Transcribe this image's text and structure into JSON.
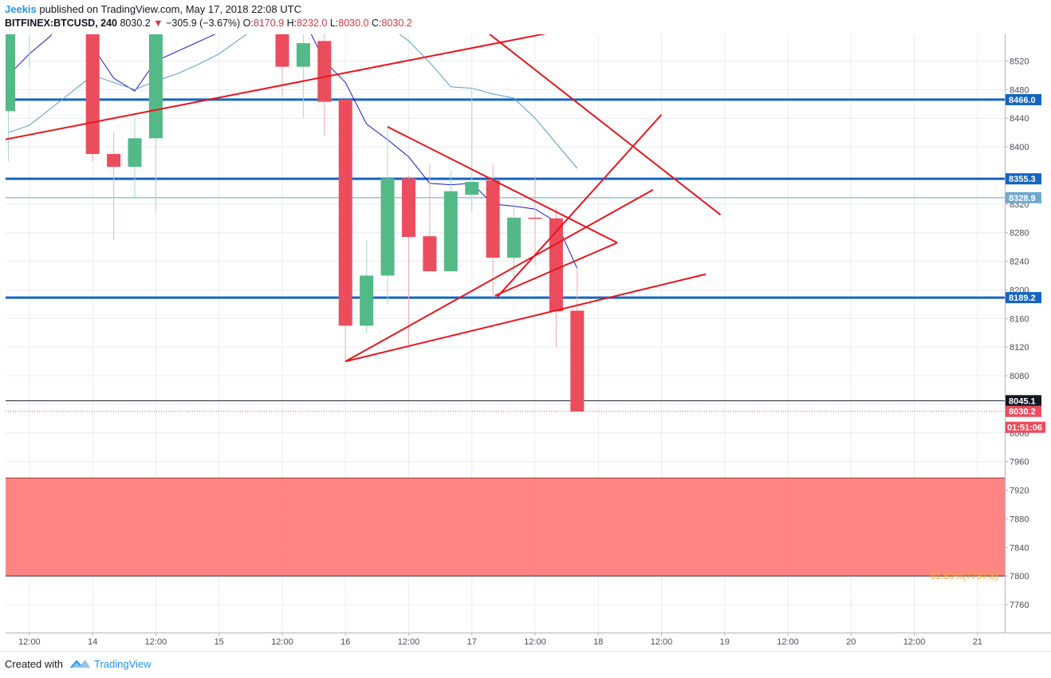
{
  "header": {
    "author": "Jeekis",
    "published": "published on TradingView.com, May 17, 2018 22:08 UTC",
    "symbol": "BITFINEX:BTCUSD, 240",
    "last": "8030.2",
    "change": "−305.9 (−3.67%)",
    "o_label": "O:",
    "o_value": "8170.9",
    "h_label": "H:",
    "h_value": "8232.0",
    "l_label": "L:",
    "l_value": "8030.0",
    "c_label": "C:",
    "c_value": "8030.2"
  },
  "footer": {
    "created_with": "Created with",
    "brand": "TradingView"
  },
  "colors": {
    "up": "#53b987",
    "down": "#eb4d5c",
    "hline": "#1565c0",
    "trend": "#e8141c",
    "ma_fast": "#1a1acc",
    "ma_slow": "#5a9bc7",
    "zone": "#ff7b7b",
    "fib": "#f0a830",
    "grid": "#e9ecf2",
    "axis_text": "#4a4e57"
  },
  "chart_data": {
    "type": "candlestick",
    "symbol": "BITFINEX:BTCUSD",
    "timeframe": "240",
    "ylim": [
      7720,
      8600
    ],
    "y_ticks": [
      7760,
      7800,
      7840,
      7880,
      7920,
      7960,
      8000,
      8040,
      8080,
      8120,
      8160,
      8200,
      8240,
      8280,
      8320,
      8400,
      8440,
      8480,
      8520
    ],
    "x_ticks": [
      {
        "t": 1,
        "label": "12:00"
      },
      {
        "t": 4,
        "label": "14"
      },
      {
        "t": 7,
        "label": "12:00"
      },
      {
        "t": 10,
        "label": "15"
      },
      {
        "t": 13,
        "label": "12:00"
      },
      {
        "t": 16,
        "label": "16"
      },
      {
        "t": 19,
        "label": "12:00"
      },
      {
        "t": 22,
        "label": "17"
      },
      {
        "t": 25,
        "label": "12:00"
      },
      {
        "t": 28,
        "label": "18"
      },
      {
        "t": 31,
        "label": "12:00"
      },
      {
        "t": 34,
        "label": "19"
      },
      {
        "t": 37,
        "label": "12:00"
      },
      {
        "t": 40,
        "label": "20"
      },
      {
        "t": 43,
        "label": "12:00"
      },
      {
        "t": 46,
        "label": "21"
      }
    ],
    "candles": [
      {
        "t": 0,
        "o": 8450,
        "h": 8600,
        "l": 8380,
        "c": 8560
      },
      {
        "t": 1,
        "o": 8590,
        "h": 8600,
        "l": 8510,
        "c": 8600
      },
      {
        "t": 4,
        "o": 8600,
        "h": 8600,
        "l": 8380,
        "c": 8390
      },
      {
        "t": 5,
        "o": 8390,
        "h": 8420,
        "l": 8270,
        "c": 8372
      },
      {
        "t": 6,
        "o": 8372,
        "h": 8440,
        "l": 8330,
        "c": 8412
      },
      {
        "t": 7,
        "o": 8412,
        "h": 8600,
        "l": 8310,
        "c": 8600
      },
      {
        "t": 13,
        "o": 8600,
        "h": 8600,
        "l": 8470,
        "c": 8512
      },
      {
        "t": 14,
        "o": 8512,
        "h": 8600,
        "l": 8440,
        "c": 8545
      },
      {
        "t": 15,
        "o": 8548,
        "h": 8600,
        "l": 8415,
        "c": 8463
      },
      {
        "t": 16,
        "o": 8466,
        "h": 8466,
        "l": 8100,
        "c": 8150
      },
      {
        "t": 17,
        "o": 8150,
        "h": 8270,
        "l": 8140,
        "c": 8220
      },
      {
        "t": 18,
        "o": 8220,
        "h": 8430,
        "l": 8180,
        "c": 8356
      },
      {
        "t": 19,
        "o": 8356,
        "h": 8360,
        "l": 8120,
        "c": 8274
      },
      {
        "t": 20,
        "o": 8275,
        "h": 8375,
        "l": 8230,
        "c": 8226
      },
      {
        "t": 21,
        "o": 8226,
        "h": 8367,
        "l": 8230,
        "c": 8338
      },
      {
        "t": 22,
        "o": 8333,
        "h": 8480,
        "l": 8310,
        "c": 8351
      },
      {
        "t": 23,
        "o": 8353,
        "h": 8375,
        "l": 8190,
        "c": 8245
      },
      {
        "t": 24,
        "o": 8245,
        "h": 8320,
        "l": 8210,
        "c": 8301
      },
      {
        "t": 25,
        "o": 8301,
        "h": 8360,
        "l": 8235,
        "c": 8300
      },
      {
        "t": 26,
        "o": 8300,
        "h": 8315,
        "l": 8120,
        "c": 8170
      },
      {
        "t": 27,
        "o": 8171,
        "h": 8232,
        "l": 8030,
        "c": 8030
      }
    ],
    "moving_averages": [
      {
        "color": "ma_fast",
        "points": [
          [
            0,
            8500
          ],
          [
            1,
            8530
          ],
          [
            2,
            8555
          ],
          [
            3,
            8600
          ],
          [
            4,
            8540
          ],
          [
            5,
            8496
          ],
          [
            6,
            8478
          ],
          [
            7,
            8520
          ],
          [
            13,
            8600
          ],
          [
            14,
            8580
          ],
          [
            15,
            8520
          ],
          [
            16,
            8490
          ],
          [
            17,
            8432
          ],
          [
            18,
            8410
          ],
          [
            19,
            8386
          ],
          [
            20,
            8349
          ],
          [
            21,
            8347
          ],
          [
            22,
            8349
          ],
          [
            23,
            8320
          ],
          [
            24,
            8317
          ],
          [
            25,
            8313
          ],
          [
            26,
            8295
          ],
          [
            27,
            8230
          ]
        ]
      },
      {
        "color": "ma_slow",
        "points": [
          [
            0,
            8420
          ],
          [
            1,
            8430
          ],
          [
            4,
            8500
          ],
          [
            6,
            8480
          ],
          [
            7,
            8492
          ],
          [
            8,
            8502
          ],
          [
            9,
            8515
          ],
          [
            10,
            8530
          ],
          [
            12,
            8572
          ],
          [
            13,
            8580
          ],
          [
            14,
            8598
          ],
          [
            16,
            8600
          ],
          [
            17,
            8590
          ],
          [
            18,
            8570
          ],
          [
            19,
            8548
          ],
          [
            20,
            8518
          ],
          [
            21,
            8484
          ],
          [
            22,
            8482
          ],
          [
            23,
            8474
          ],
          [
            24,
            8468
          ],
          [
            25,
            8440
          ],
          [
            26,
            8405
          ],
          [
            27,
            8370
          ]
        ]
      }
    ],
    "horizontal_lines": [
      {
        "price": 8466.0,
        "label": "8466.0",
        "style": "thick"
      },
      {
        "price": 8355.3,
        "label": "8355.3",
        "style": "thick"
      },
      {
        "price": 8328.9,
        "label": "8328.9",
        "style": "thin"
      },
      {
        "price": 8189.2,
        "label": "8189.2",
        "style": "thick"
      },
      {
        "price": 8045.1,
        "label": "8045.1",
        "style": "black"
      },
      {
        "price": 8030.2,
        "label": "8030.2",
        "style": "dotted"
      }
    ],
    "countdown": "01:51:06",
    "trendlines": [
      [
        [
          -0.2,
          8410
        ],
        [
          27,
          8567
        ]
      ],
      [
        [
          21,
          8600
        ],
        [
          33.8,
          8305
        ]
      ],
      [
        [
          16,
          8100
        ],
        [
          30.6,
          8340
        ]
      ],
      [
        [
          23.2,
          8190
        ],
        [
          31,
          8445
        ]
      ],
      [
        [
          18,
          8428
        ],
        [
          28.9,
          8266
        ]
      ],
      [
        [
          28.9,
          8266
        ],
        [
          23.1,
          8192
        ]
      ],
      [
        [
          16,
          8100
        ],
        [
          33.1,
          8222
        ]
      ]
    ],
    "zone": {
      "top": 7937,
      "bottom": 7800
    },
    "fib_label": {
      "text": "61.80%(7797.8)",
      "price": 7800
    }
  }
}
